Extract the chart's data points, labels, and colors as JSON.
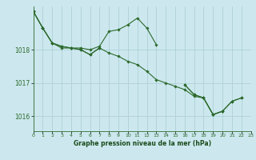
{
  "background_color": "#cce8ee",
  "grid_color": "#b0d0d8",
  "line_color": "#2d6a2d",
  "marker_color": "#2d6a2d",
  "xlabel": "Graphe pression niveau de la mer (hPa)",
  "xlabel_color": "#1a4a1a",
  "ylabel_ticks": [
    1016,
    1017,
    1018
  ],
  "xtick_labels": [
    "0",
    "1",
    "2",
    "3",
    "4",
    "5",
    "6",
    "7",
    "8",
    "9",
    "10",
    "11",
    "12",
    "13",
    "14",
    "15",
    "16",
    "17",
    "18",
    "19",
    "20",
    "21",
    "22",
    "23"
  ],
  "xticks": [
    0,
    1,
    2,
    3,
    4,
    5,
    6,
    7,
    8,
    9,
    10,
    11,
    12,
    13,
    14,
    15,
    16,
    17,
    18,
    19,
    20,
    21,
    22,
    23
  ],
  "xlim": [
    0,
    23
  ],
  "ylim": [
    1015.55,
    1019.3
  ],
  "series": [
    [
      1019.15,
      1018.65,
      1018.2,
      1018.05,
      1018.05,
      1018.05,
      1018.0,
      1018.1,
      1018.55,
      1018.6,
      1018.75,
      1018.95,
      1018.65,
      1018.15,
      null,
      null,
      null,
      null,
      null,
      null,
      null,
      null,
      null,
      null
    ],
    [
      1019.15,
      1018.65,
      1018.2,
      1018.1,
      1018.05,
      1018.0,
      1017.85,
      1018.05,
      1017.9,
      1017.8,
      1017.65,
      1017.55,
      1017.35,
      1017.1,
      1017.0,
      1016.9,
      1016.8,
      1016.6,
      1016.55,
      1016.05,
      1016.15,
      1016.45,
      1016.55,
      null
    ],
    [
      1019.15,
      1018.65,
      1018.2,
      1018.1,
      1018.05,
      1018.0,
      1017.85,
      1018.05,
      null,
      null,
      null,
      null,
      null,
      null,
      null,
      null,
      1016.95,
      1016.65,
      1016.55,
      1016.05,
      1016.15,
      1016.45,
      1016.55,
      null
    ],
    [
      1019.15,
      null,
      null,
      null,
      null,
      null,
      null,
      null,
      null,
      null,
      null,
      null,
      null,
      null,
      null,
      null,
      1016.95,
      1016.65,
      1016.55,
      1016.05,
      1016.15,
      null,
      null,
      null
    ]
  ]
}
